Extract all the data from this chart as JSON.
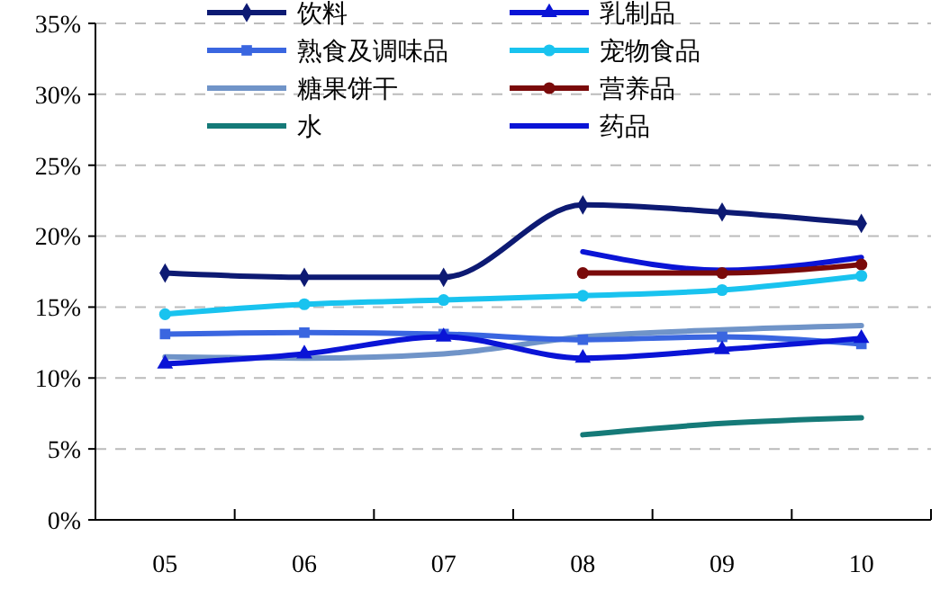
{
  "chart_data": {
    "type": "line",
    "categories": [
      "05",
      "06",
      "07",
      "08",
      "09",
      "10"
    ],
    "series": [
      {
        "name": "饮料",
        "color": "#0d1a73",
        "marker": "diamond",
        "values": [
          17.4,
          17.1,
          17.1,
          22.2,
          21.7,
          20.9
        ]
      },
      {
        "name": "乳制品",
        "color": "#0a14d6",
        "marker": "triangle",
        "values": [
          11.0,
          11.7,
          12.9,
          11.4,
          12.0,
          12.8
        ]
      },
      {
        "name": "熟食及调味品",
        "color": "#3a66e0",
        "marker": "square",
        "values": [
          13.1,
          13.2,
          13.1,
          12.7,
          12.9,
          12.4
        ]
      },
      {
        "name": "宠物食品",
        "color": "#19c3ef",
        "marker": "circle",
        "values": [
          14.5,
          15.2,
          15.5,
          15.8,
          16.2,
          17.2
        ]
      },
      {
        "name": "糖果饼干",
        "color": "#7094c8",
        "marker": "none",
        "values": [
          11.5,
          11.4,
          11.7,
          12.9,
          13.4,
          13.7
        ]
      },
      {
        "name": "营养品",
        "color": "#7a0a0a",
        "marker": "circle",
        "values": [
          null,
          null,
          null,
          17.4,
          17.4,
          18.0
        ]
      },
      {
        "name": "水",
        "color": "#157a78",
        "marker": "none",
        "values": [
          null,
          null,
          null,
          6.0,
          6.8,
          7.2
        ]
      },
      {
        "name": "药品",
        "color": "#0a14d6",
        "marker": "none",
        "values": [
          null,
          null,
          null,
          18.9,
          17.6,
          18.5
        ]
      }
    ],
    "ylim": [
      0,
      35
    ],
    "yticks": [
      {
        "value": 0,
        "label": "0%"
      },
      {
        "value": 5,
        "label": "5%"
      },
      {
        "value": 10,
        "label": "10%"
      },
      {
        "value": 15,
        "label": "15%"
      },
      {
        "value": 20,
        "label": "20%"
      },
      {
        "value": 25,
        "label": "25%"
      },
      {
        "value": 30,
        "label": "30%"
      },
      {
        "value": 35,
        "label": "35%"
      }
    ],
    "grid": "y",
    "legend": "top left",
    "line_style": "solid"
  }
}
